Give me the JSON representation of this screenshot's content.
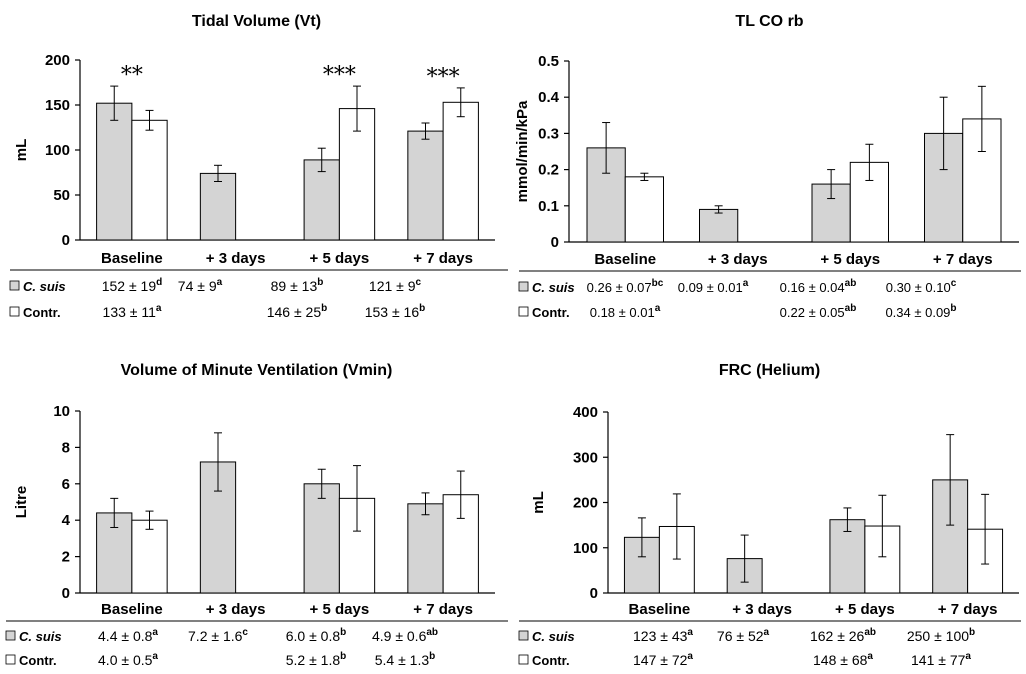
{
  "chart_data": [
    {
      "type": "bar",
      "title": "Tidal Volume (Vt)",
      "ylabel": "mL",
      "ylim": [
        0,
        200
      ],
      "yticks": [
        "0",
        "50",
        "100",
        "150",
        "200"
      ],
      "categories": [
        "Baseline",
        "+ 3 days",
        "+ 5 days",
        "+ 7 days"
      ],
      "series": [
        {
          "name": "C. suis",
          "color": "#d4d4d4",
          "values": [
            152,
            74,
            89,
            121
          ],
          "errors": [
            19,
            9,
            13,
            9
          ]
        },
        {
          "name": "Contr.",
          "color": "#ffffff",
          "values": [
            133,
            null,
            146,
            153
          ],
          "errors": [
            11,
            null,
            25,
            16
          ]
        }
      ],
      "annotations": [
        "**",
        "",
        "***",
        "***"
      ],
      "table": {
        "row_labels": [
          "C. suis",
          "Contr."
        ],
        "rows": [
          [
            {
              "v": "152 ± 19",
              "s": "d"
            },
            {
              "v": "74 ± 9",
              "s": "a"
            },
            {
              "v": "89 ± 13",
              "s": "b"
            },
            {
              "v": "121 ±  9",
              "s": "c"
            }
          ],
          [
            {
              "v": "133 ± 11",
              "s": "a"
            },
            {
              "v": "",
              "s": ""
            },
            {
              "v": "146 ± 25",
              "s": "b"
            },
            {
              "v": "153 ± 16",
              "s": "b"
            }
          ]
        ]
      }
    },
    {
      "type": "bar",
      "title": "TL CO rb",
      "ylabel": "mmol/min/kPa",
      "ylim": [
        0,
        0.5
      ],
      "yticks": [
        "0",
        "0.1",
        "0.2",
        "0.3",
        "0.4",
        "0.5"
      ],
      "categories": [
        "Baseline",
        "+ 3 days",
        "+ 5 days",
        "+ 7 days"
      ],
      "series": [
        {
          "name": "C. suis",
          "color": "#d4d4d4",
          "values": [
            0.26,
            0.09,
            0.16,
            0.3
          ],
          "errors": [
            0.07,
            0.01,
            0.04,
            0.1
          ]
        },
        {
          "name": "Contr.",
          "color": "#ffffff",
          "values": [
            0.18,
            null,
            0.22,
            0.34
          ],
          "errors": [
            0.01,
            null,
            0.05,
            0.09
          ]
        }
      ],
      "annotations": [
        "",
        "",
        "",
        ""
      ],
      "table": {
        "row_labels": [
          "C. suis",
          "Contr."
        ],
        "rows": [
          [
            {
              "v": "0.26 ± 0.07",
              "s": "bc"
            },
            {
              "v": "0.09 ± 0.01",
              "s": "a"
            },
            {
              "v": "0.16 ± 0.04",
              "s": "ab"
            },
            {
              "v": "0.30 ± 0.10",
              "s": "c"
            }
          ],
          [
            {
              "v": "0.18 ± 0.01",
              "s": "a"
            },
            {
              "v": "",
              "s": ""
            },
            {
              "v": "0.22 ± 0.05",
              "s": "ab"
            },
            {
              "v": "0.34 ± 0.09",
              "s": "b"
            }
          ]
        ]
      }
    },
    {
      "type": "bar",
      "title": "Volume of Minute Ventilation (Vmin)",
      "ylabel": "Litre",
      "ylim": [
        0,
        10
      ],
      "yticks": [
        "0",
        "2",
        "4",
        "6",
        "8",
        "10"
      ],
      "categories": [
        "Baseline",
        "+ 3 days",
        "+ 5 days",
        "+ 7 days"
      ],
      "series": [
        {
          "name": "C. suis",
          "color": "#d4d4d4",
          "values": [
            4.4,
            7.2,
            6.0,
            4.9
          ],
          "errors": [
            0.8,
            1.6,
            0.8,
            0.6
          ]
        },
        {
          "name": "Contr.",
          "color": "#ffffff",
          "values": [
            4.0,
            null,
            5.2,
            5.4
          ],
          "errors": [
            0.5,
            null,
            1.8,
            1.3
          ]
        }
      ],
      "annotations": [
        "",
        "",
        "",
        ""
      ],
      "table": {
        "row_labels": [
          "C. suis",
          "Contr."
        ],
        "rows": [
          [
            {
              "v": "4.4 ± 0.8",
              "s": "a"
            },
            {
              "v": "7.2 ± 1.6",
              "s": "c"
            },
            {
              "v": "6.0 ± 0.8",
              "s": "b"
            },
            {
              "v": "4.9 ± 0.6",
              "s": "ab"
            }
          ],
          [
            {
              "v": "4.0 ± 0.5",
              "s": "a"
            },
            {
              "v": "",
              "s": ""
            },
            {
              "v": "5.2 ± 1.8",
              "s": "b"
            },
            {
              "v": "5.4 ± 1.3",
              "s": "b"
            }
          ]
        ]
      }
    },
    {
      "type": "bar",
      "title": "FRC (Helium)",
      "ylabel": "mL",
      "ylim": [
        0,
        400
      ],
      "yticks": [
        "0",
        "100",
        "200",
        "300",
        "400"
      ],
      "categories": [
        "Baseline",
        "+ 3 days",
        "+ 5 days",
        "+ 7 days"
      ],
      "series": [
        {
          "name": "C. suis",
          "color": "#d4d4d4",
          "values": [
            123,
            76,
            162,
            250
          ],
          "errors": [
            43,
            52,
            26,
            100
          ]
        },
        {
          "name": "Contr.",
          "color": "#ffffff",
          "values": [
            147,
            null,
            148,
            141
          ],
          "errors": [
            72,
            null,
            68,
            77
          ]
        }
      ],
      "annotations": [
        "",
        "",
        "",
        ""
      ],
      "table": {
        "row_labels": [
          "C. suis",
          "Contr."
        ],
        "rows": [
          [
            {
              "v": "123 ± 43",
              "s": "a"
            },
            {
              "v": "76 ± 52",
              "s": "a"
            },
            {
              "v": "162 ± 26",
              "s": "ab"
            },
            {
              "v": "250 ± 100",
              "s": "b"
            }
          ],
          [
            {
              "v": "147 ± 72",
              "s": "a"
            },
            {
              "v": "",
              "s": ""
            },
            {
              "v": "148 ± 68",
              "s": "a"
            },
            {
              "v": "141 ± 77",
              "s": "a"
            }
          ]
        ]
      }
    }
  ]
}
